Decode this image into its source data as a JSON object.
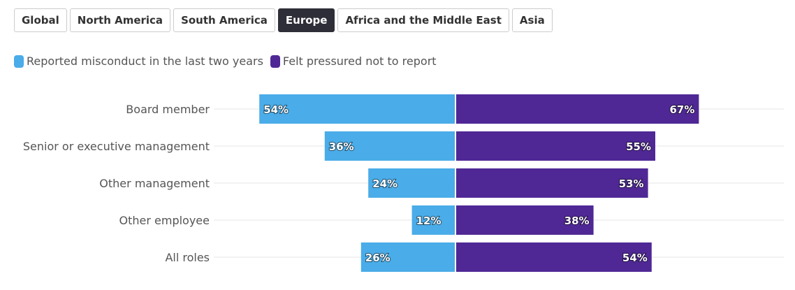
{
  "tabs": [
    {
      "label": "Global",
      "active": false
    },
    {
      "label": "North America",
      "active": false
    },
    {
      "label": "South America",
      "active": false
    },
    {
      "label": "Europe",
      "active": true
    },
    {
      "label": "Africa and the Middle East",
      "active": false
    },
    {
      "label": "Asia",
      "active": false
    }
  ],
  "legend": [
    {
      "label": "Reported misconduct in the last two years",
      "color": "#4aace8"
    },
    {
      "label": "Felt pressured not to report",
      "color": "#4f2895"
    }
  ],
  "chart_data": {
    "type": "bar",
    "orientation": "horizontal-diverging",
    "categories": [
      "Board member",
      "Senior or executive management",
      "Other management",
      "Other employee",
      "All roles"
    ],
    "series": [
      {
        "name": "Reported misconduct in the last two years",
        "values": [
          54,
          36,
          24,
          12,
          26
        ],
        "labels": [
          "54%",
          "36%",
          "24%",
          "12%",
          "26%"
        ],
        "color": "#4aace8"
      },
      {
        "name": "Felt pressured not to report",
        "values": [
          67,
          55,
          53,
          38,
          54
        ],
        "labels": [
          "67%",
          "55%",
          "53%",
          "38%",
          "54%"
        ],
        "color": "#4f2895"
      }
    ],
    "unit": "%",
    "xlim": [
      0,
      100
    ]
  }
}
